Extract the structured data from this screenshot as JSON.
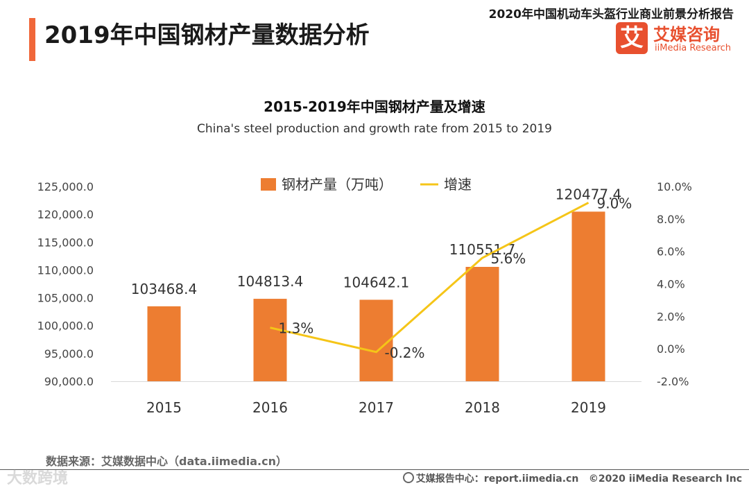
{
  "header": {
    "page_title": "2019年中国钢材产量数据分析",
    "report_title": "2020年中国机动车头盔行业商业前景分析报告",
    "logo_char": "艾",
    "logo_name": "艾媒咨询",
    "logo_sub": "iiMedia Research"
  },
  "colors": {
    "accent": "#f0673a",
    "bar": "#ed7d31",
    "line": "#f5c518",
    "logo": "#e8502f"
  },
  "chart_data": {
    "type": "bar",
    "title": "2015-2019年中国钢材产量及增速",
    "subtitle": "China's steel production and growth rate from 2015 to 2019",
    "categories": [
      "2015",
      "2016",
      "2017",
      "2018",
      "2019"
    ],
    "legend_position": "top-center",
    "grid": false,
    "series": [
      {
        "name": "钢材产量（万吨）",
        "type": "bar",
        "axis": "left",
        "values": [
          103468.4,
          104813.4,
          104642.1,
          110551.7,
          120477.4
        ],
        "labels": [
          "103468.4",
          "104813.4",
          "104642.1",
          "110551.7",
          "120477.4"
        ]
      },
      {
        "name": "增速",
        "type": "line",
        "axis": "right",
        "values": [
          null,
          1.3,
          -0.2,
          5.6,
          9.0
        ],
        "labels": [
          "",
          "1.3%",
          "-0.2%",
          "5.6%",
          "9.0%"
        ]
      }
    ],
    "y_left": {
      "min": 90000,
      "max": 125000,
      "step": 5000,
      "ticks": [
        "90,000.0",
        "95,000.0",
        "100,000.0",
        "105,000.0",
        "110,000.0",
        "115,000.0",
        "120,000.0",
        "125,000.0"
      ]
    },
    "y_right": {
      "min": -2,
      "max": 10,
      "step": 2,
      "ticks": [
        "-2.0%",
        "0.0%",
        "2.0%",
        "4.0%",
        "6.0%",
        "8.0%",
        "10.0%"
      ]
    }
  },
  "footer": {
    "source": "数据来源：艾媒数据中心（data.iimedia.cn）",
    "site": "艾媒报告中心：report.iimedia.cn",
    "copyright": "©2020  iiMedia Research  Inc",
    "watermark": "大数跨境"
  }
}
